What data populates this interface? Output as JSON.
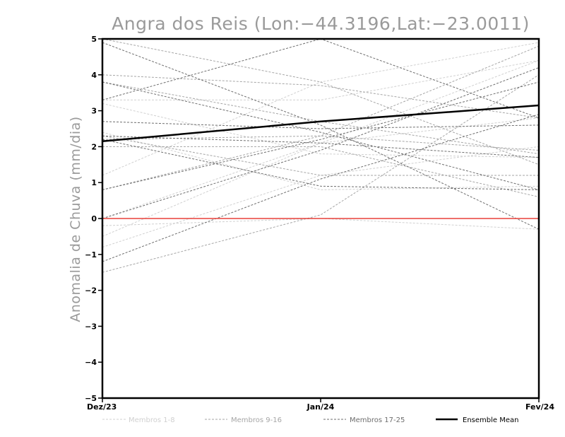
{
  "chart_data": {
    "type": "line",
    "title": "Angra dos Reis (Lon:-44.3196,Lat:-23.0011)",
    "ylabel": "Anomalia de Chuva (mm/dia)",
    "xlabel": "",
    "categories": [
      "Dez/23",
      "Jan/24",
      "Fev/24"
    ],
    "ylim": [
      -5,
      5
    ],
    "yticks": [
      "5",
      "4",
      "3",
      "2",
      "1",
      "0",
      "-1",
      "-2",
      "-3",
      "-4",
      "-5"
    ],
    "grid": false,
    "legend_position": "bottom",
    "zero_line": 0,
    "legend": {
      "members_1_8": "Membros 1-8",
      "members_9_16": "Membros 9-16",
      "members_17_25": "Membros 17-25",
      "ensemble_mean": "Ensemble Mean"
    },
    "colors": {
      "members_1_8": "#d0d0d0",
      "members_9_16": "#a6a6a6",
      "members_17_25": "#6e6e6e",
      "ensemble_mean": "#000000",
      "zero_line": "#e8413a",
      "title": "#9a9a9a"
    },
    "series": [
      {
        "group": "members_1_8",
        "values": [
          3.3,
          3.3,
          4.4
        ]
      },
      {
        "group": "members_1_8",
        "values": [
          3.2,
          1.8,
          1.7
        ]
      },
      {
        "group": "members_1_8",
        "values": [
          1.2,
          3.8,
          4.9
        ]
      },
      {
        "group": "members_1_8",
        "values": [
          0.0,
          2.1,
          2.8
        ]
      },
      {
        "group": "members_1_8",
        "values": [
          -0.5,
          2.1,
          4.4
        ]
      },
      {
        "group": "members_1_8",
        "values": [
          -0.8,
          1.2,
          2.0
        ]
      },
      {
        "group": "members_1_8",
        "values": [
          2.4,
          0.8,
          0.9
        ]
      },
      {
        "group": "members_1_8",
        "values": [
          -0.2,
          0.0,
          -0.3
        ]
      },
      {
        "group": "members_9_16",
        "values": [
          4.0,
          3.7,
          2.8
        ]
      },
      {
        "group": "members_9_16",
        "values": [
          2.2,
          2.3,
          1.9
        ]
      },
      {
        "group": "members_9_16",
        "values": [
          -1.5,
          0.1,
          4.0
        ]
      },
      {
        "group": "members_9_16",
        "values": [
          0.8,
          2.3,
          4.8
        ]
      },
      {
        "group": "members_9_16",
        "values": [
          5.0,
          3.8,
          1.5
        ]
      },
      {
        "group": "members_9_16",
        "values": [
          2.3,
          1.2,
          1.2
        ]
      },
      {
        "group": "members_9_16",
        "values": [
          2.0,
          2.0,
          0.6
        ]
      },
      {
        "group": "members_9_16",
        "values": [
          3.8,
          2.7,
          1.8
        ]
      },
      {
        "group": "members_17_25",
        "values": [
          3.3,
          5.0,
          2.8
        ]
      },
      {
        "group": "members_17_25",
        "values": [
          2.7,
          2.5,
          2.6
        ]
      },
      {
        "group": "members_17_25",
        "values": [
          0.8,
          2.2,
          3.8
        ]
      },
      {
        "group": "members_17_25",
        "values": [
          0.0,
          1.9,
          4.2
        ]
      },
      {
        "group": "members_17_25",
        "values": [
          -1.2,
          1.1,
          2.9
        ]
      },
      {
        "group": "members_17_25",
        "values": [
          2.3,
          2.1,
          1.7
        ]
      },
      {
        "group": "members_17_25",
        "values": [
          3.8,
          2.4,
          0.8
        ]
      },
      {
        "group": "members_17_25",
        "values": [
          4.9,
          2.6,
          -0.3
        ]
      },
      {
        "group": "members_17_25",
        "values": [
          2.2,
          0.9,
          0.8
        ]
      },
      {
        "group": "ensemble_mean",
        "values": [
          2.15,
          2.7,
          3.15
        ]
      }
    ]
  }
}
